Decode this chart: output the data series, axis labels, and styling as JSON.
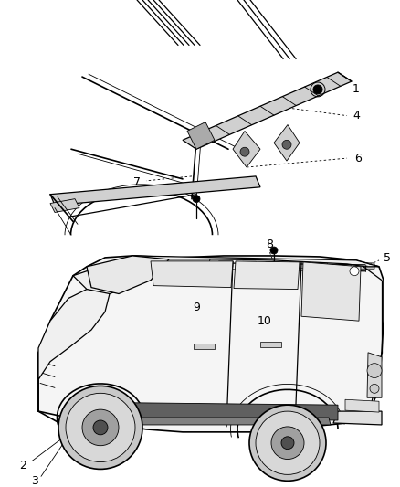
{
  "background_color": "#ffffff",
  "fig_width": 4.38,
  "fig_height": 5.33,
  "dpi": 100,
  "label_fontsize": 9,
  "label_color": "#000000",
  "line_color": "#000000",
  "gray_fill": "#e8e8e8",
  "dark_gray": "#606060",
  "mid_gray": "#aaaaaa",
  "light_gray": "#d0d0d0"
}
